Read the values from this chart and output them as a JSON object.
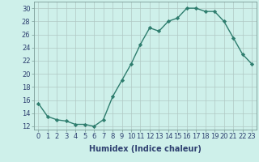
{
  "x": [
    0,
    1,
    2,
    3,
    4,
    5,
    6,
    7,
    8,
    9,
    10,
    11,
    12,
    13,
    14,
    15,
    16,
    17,
    18,
    19,
    20,
    21,
    22,
    23
  ],
  "y": [
    15.5,
    13.5,
    13.0,
    12.8,
    12.3,
    12.3,
    12.0,
    13.0,
    16.5,
    19.0,
    21.5,
    24.5,
    27.0,
    26.5,
    28.0,
    28.5,
    30.0,
    30.0,
    29.5,
    29.5,
    28.0,
    25.5,
    23.0,
    21.5
  ],
  "line_color": "#2e7d6e",
  "marker": "D",
  "marker_size": 2.2,
  "bg_color": "#cef0ea",
  "grid_color": "#b0c8c4",
  "xlabel": "Humidex (Indice chaleur)",
  "ylim": [
    11.5,
    31.0
  ],
  "yticks": [
    12,
    14,
    16,
    18,
    20,
    22,
    24,
    26,
    28,
    30
  ],
  "xlim": [
    -0.5,
    23.5
  ],
  "xticks": [
    0,
    1,
    2,
    3,
    4,
    5,
    6,
    7,
    8,
    9,
    10,
    11,
    12,
    13,
    14,
    15,
    16,
    17,
    18,
    19,
    20,
    21,
    22,
    23
  ],
  "xlabel_fontsize": 7.0,
  "tick_fontsize": 6.0,
  "line_width": 1.0,
  "xlabel_color": "#2e4070",
  "tick_color": "#2e4070",
  "spine_color": "#7a9a96"
}
